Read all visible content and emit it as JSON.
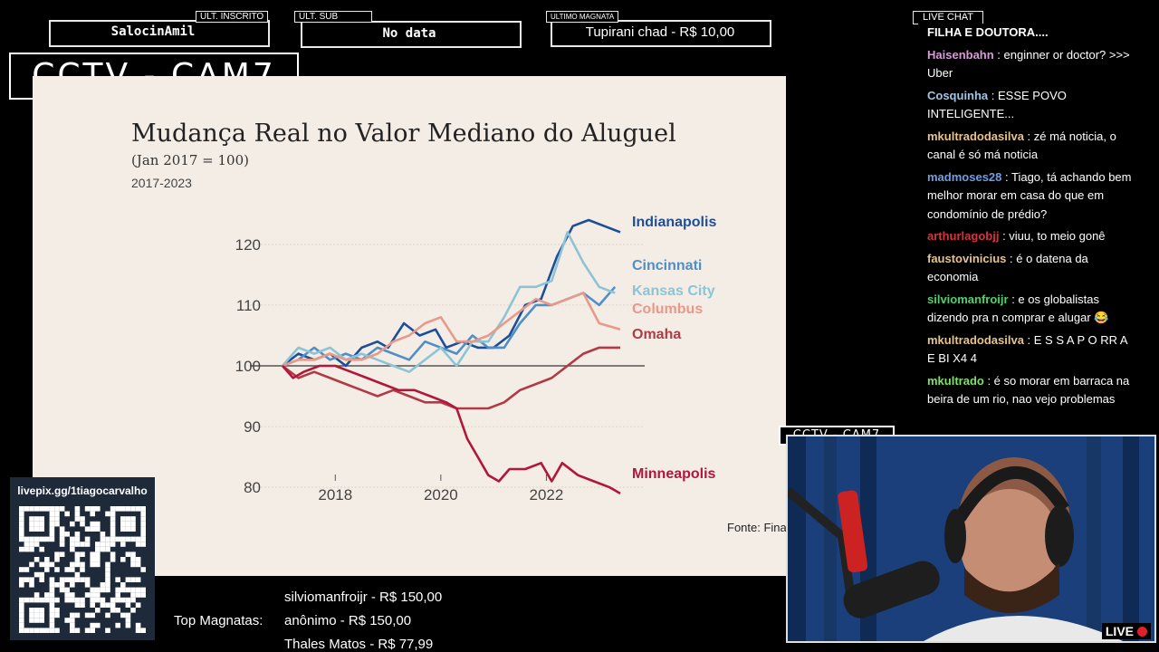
{
  "header": {
    "ult_inscrito": {
      "tag": "ULT. INSCRITO",
      "value": "SalocinAmil"
    },
    "ult_sub": {
      "tag": "ULT. SUB",
      "value": "No data"
    },
    "ultimo_magnata": {
      "tag": "ULTIMO MAGNATA",
      "value": "Tupirani chad - R$ 10,00"
    }
  },
  "cam_label_main": "CCTV - CAM7",
  "cam_label_small": "CCTV - CAM7",
  "chart_data": {
    "type": "line",
    "title": "Mudança Real no Valor Mediano do Aluguel",
    "subtitle": "(Jan 2017 = 100)",
    "period": "2017-2023",
    "source": "Fonte: Fina",
    "x_ticks": [
      "2018",
      "2020",
      "2022"
    ],
    "y_ticks": [
      "120",
      "110",
      "100",
      "90",
      "80"
    ],
    "xlim": [
      2017.0,
      2024.0
    ],
    "ylim": [
      76,
      124
    ],
    "series": [
      {
        "name": "Indianapolis",
        "color": "#1f4e99",
        "points": [
          [
            2017.0,
            100
          ],
          [
            2017.3,
            102
          ],
          [
            2017.6,
            101
          ],
          [
            2017.9,
            102
          ],
          [
            2018.2,
            100
          ],
          [
            2018.5,
            103
          ],
          [
            2018.8,
            104
          ],
          [
            2019.0,
            103
          ],
          [
            2019.3,
            107
          ],
          [
            2019.6,
            105
          ],
          [
            2019.9,
            106
          ],
          [
            2020.1,
            103
          ],
          [
            2020.4,
            104
          ],
          [
            2020.7,
            103
          ],
          [
            2021.0,
            103
          ],
          [
            2021.3,
            105
          ],
          [
            2021.6,
            110
          ],
          [
            2021.9,
            111
          ],
          [
            2022.2,
            118
          ],
          [
            2022.5,
            123
          ],
          [
            2022.8,
            124
          ],
          [
            2023.1,
            123
          ],
          [
            2023.4,
            122
          ]
        ]
      },
      {
        "name": "Cincinnati",
        "color": "#4f8fc8",
        "points": [
          [
            2017.0,
            100
          ],
          [
            2017.3,
            101
          ],
          [
            2017.6,
            103
          ],
          [
            2017.9,
            101
          ],
          [
            2018.2,
            102
          ],
          [
            2018.5,
            101
          ],
          [
            2018.8,
            103
          ],
          [
            2019.1,
            102
          ],
          [
            2019.4,
            101
          ],
          [
            2019.7,
            104
          ],
          [
            2020.0,
            103
          ],
          [
            2020.3,
            102
          ],
          [
            2020.6,
            105
          ],
          [
            2020.9,
            103
          ],
          [
            2021.2,
            103
          ],
          [
            2021.5,
            107
          ],
          [
            2021.8,
            110
          ],
          [
            2022.1,
            110
          ],
          [
            2022.4,
            111
          ],
          [
            2022.7,
            112
          ],
          [
            2023.0,
            110
          ],
          [
            2023.3,
            113
          ]
        ]
      },
      {
        "name": "Kansas City",
        "color": "#8cc4d6",
        "points": [
          [
            2017.0,
            100
          ],
          [
            2017.3,
            103
          ],
          [
            2017.6,
            102
          ],
          [
            2017.9,
            103
          ],
          [
            2018.2,
            101
          ],
          [
            2018.5,
            102
          ],
          [
            2018.8,
            101
          ],
          [
            2019.1,
            100
          ],
          [
            2019.4,
            99
          ],
          [
            2019.7,
            101
          ],
          [
            2020.0,
            103
          ],
          [
            2020.3,
            100
          ],
          [
            2020.6,
            104
          ],
          [
            2020.9,
            104
          ],
          [
            2021.2,
            108
          ],
          [
            2021.5,
            113
          ],
          [
            2021.8,
            113
          ],
          [
            2022.1,
            114
          ],
          [
            2022.4,
            122
          ],
          [
            2022.7,
            117
          ],
          [
            2023.0,
            113
          ],
          [
            2023.3,
            112
          ]
        ]
      },
      {
        "name": "Columbus",
        "color": "#e8998a",
        "points": [
          [
            2017.0,
            100
          ],
          [
            2017.3,
            101
          ],
          [
            2017.6,
            101
          ],
          [
            2017.9,
            102
          ],
          [
            2018.2,
            101
          ],
          [
            2018.5,
            101
          ],
          [
            2018.8,
            102
          ],
          [
            2019.1,
            104
          ],
          [
            2019.4,
            105
          ],
          [
            2019.7,
            107
          ],
          [
            2020.0,
            108
          ],
          [
            2020.3,
            104
          ],
          [
            2020.6,
            104
          ],
          [
            2020.9,
            105
          ],
          [
            2021.2,
            107
          ],
          [
            2021.5,
            109
          ],
          [
            2021.8,
            111
          ],
          [
            2022.1,
            110
          ],
          [
            2022.4,
            111
          ],
          [
            2022.7,
            112
          ],
          [
            2023.0,
            107
          ],
          [
            2023.4,
            106
          ]
        ]
      },
      {
        "name": "Omaha",
        "color": "#b13a45",
        "points": [
          [
            2017.0,
            100
          ],
          [
            2017.3,
            98
          ],
          [
            2017.6,
            99
          ],
          [
            2017.9,
            98
          ],
          [
            2018.2,
            97
          ],
          [
            2018.5,
            96
          ],
          [
            2018.8,
            95
          ],
          [
            2019.1,
            96
          ],
          [
            2019.4,
            95
          ],
          [
            2019.7,
            94
          ],
          [
            2020.0,
            94
          ],
          [
            2020.3,
            93
          ],
          [
            2020.6,
            93
          ],
          [
            2020.9,
            93
          ],
          [
            2021.2,
            94
          ],
          [
            2021.5,
            96
          ],
          [
            2021.8,
            97
          ],
          [
            2022.1,
            98
          ],
          [
            2022.4,
            100
          ],
          [
            2022.7,
            102
          ],
          [
            2023.0,
            103
          ],
          [
            2023.4,
            103
          ]
        ]
      },
      {
        "name": "Minneapolis",
        "color": "#b0173a",
        "points": [
          [
            2017.0,
            100
          ],
          [
            2017.2,
            98
          ],
          [
            2017.4,
            99
          ],
          [
            2017.7,
            100
          ],
          [
            2018.0,
            100
          ],
          [
            2018.3,
            99
          ],
          [
            2018.6,
            98
          ],
          [
            2018.9,
            97
          ],
          [
            2019.2,
            96
          ],
          [
            2019.5,
            96
          ],
          [
            2019.8,
            95
          ],
          [
            2020.1,
            94
          ],
          [
            2020.3,
            93
          ],
          [
            2020.5,
            88
          ],
          [
            2020.7,
            85
          ],
          [
            2020.9,
            82
          ],
          [
            2021.1,
            81
          ],
          [
            2021.3,
            83
          ],
          [
            2021.6,
            83
          ],
          [
            2021.9,
            84
          ],
          [
            2022.1,
            81
          ],
          [
            2022.3,
            84
          ],
          [
            2022.6,
            82
          ],
          [
            2022.9,
            81
          ],
          [
            2023.2,
            80
          ],
          [
            2023.4,
            79
          ]
        ]
      }
    ]
  },
  "chat": {
    "header": "LIVE CHAT",
    "messages": [
      {
        "user": "",
        "text": "FILHA E DOUTORA....",
        "color": "#ffffff"
      },
      {
        "user": "Haisenbahn",
        "text": " : enginner or doctor? >>> Uber",
        "color": "#d79bd8"
      },
      {
        "user": "Cosquinha",
        "text": " : ESSE POVO INTELIGENTE...",
        "color": "#9fc6e8"
      },
      {
        "user": "mkultradodasilva",
        "text": " : zé má noticia, o canal é só má noticia",
        "color": "#e8c28d"
      },
      {
        "user": "madmoses28",
        "text": " : Tiago, tá achando bem melhor morar em casa do que em condomínio de prédio?",
        "color": "#6f9fe0"
      },
      {
        "user": "arthurlagobjj",
        "text": " : viuu, to meio gonê",
        "color": "#d3343f"
      },
      {
        "user": "faustovinicius",
        "text": " : é o datena da economia",
        "color": "#e8c28d"
      },
      {
        "user": "silviomanfroijr",
        "text": " : e os globalistas dizendo pra n comprar e alugar 😂",
        "color": "#4fd16b"
      },
      {
        "user": "mkultradodasilva",
        "text": " : E S S A P O RR A E BI X4 4",
        "color": "#e8c28d"
      },
      {
        "user": "mkultrado",
        "text": " : é so morar em barraca na beira de um rio, nao vejo problemas",
        "color": "#7ee06a"
      }
    ]
  },
  "qr": {
    "url": "livepix.gg/1tiagocarvalho"
  },
  "magnatas": {
    "label": "Top Magnatas:",
    "entries": [
      "silviomanfroijr - R$ 150,00",
      "anônimo - R$ 150,00",
      "Thales Matos - R$ 77,99"
    ]
  },
  "live_badge": "LIVE"
}
